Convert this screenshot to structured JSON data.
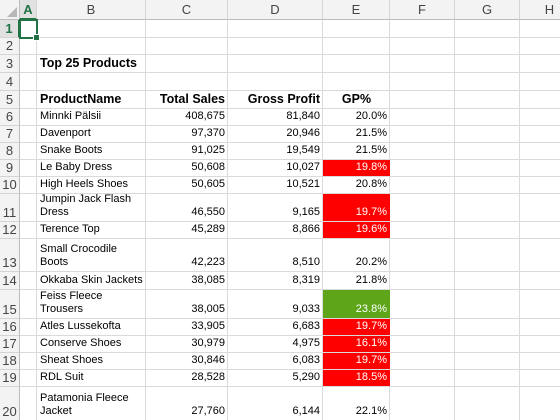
{
  "columns": [
    "A",
    "B",
    "C",
    "D",
    "E",
    "F",
    "G",
    "H"
  ],
  "row_numbers": [
    "1",
    "2",
    "3",
    "4",
    "5",
    "6",
    "7",
    "8",
    "9",
    "10",
    "11",
    "12",
    "13",
    "14",
    "15",
    "16",
    "17",
    "18",
    "19",
    "20"
  ],
  "title": "Top 25 Products",
  "headers": {
    "product": "ProductName",
    "sales": "Total Sales",
    "profit": "Gross Profit",
    "gp": "GP%"
  },
  "products": [
    {
      "name": "Minnki Pälsii",
      "sales": "408,675",
      "profit": "81,840",
      "gp": "20.0%",
      "fill": ""
    },
    {
      "name": "Davenport",
      "sales": "97,370",
      "profit": "20,946",
      "gp": "21.5%",
      "fill": ""
    },
    {
      "name": "Snake Boots",
      "sales": "91,025",
      "profit": "19,549",
      "gp": "21.5%",
      "fill": ""
    },
    {
      "name": "Le Baby Dress",
      "sales": "50,608",
      "profit": "10,027",
      "gp": "19.8%",
      "fill": "red"
    },
    {
      "name": "High Heels Shoes",
      "sales": "50,605",
      "profit": "10,521",
      "gp": "20.8%",
      "fill": ""
    },
    {
      "name": "Jumpin Jack Flash Dress",
      "sales": "46,550",
      "profit": "9,165",
      "gp": "19.7%",
      "fill": "red"
    },
    {
      "name": "Terence Top",
      "sales": "45,289",
      "profit": "8,866",
      "gp": "19.6%",
      "fill": "red"
    },
    {
      "name": "Small Crocodile Boots",
      "sales": "42,223",
      "profit": "8,510",
      "gp": "20.2%",
      "fill": ""
    },
    {
      "name": "Okkaba Skin Jackets",
      "sales": "38,085",
      "profit": "8,319",
      "gp": "21.8%",
      "fill": ""
    },
    {
      "name": "Feiss Fleece Trousers",
      "sales": "38,005",
      "profit": "9,033",
      "gp": "23.8%",
      "fill": "green"
    },
    {
      "name": "Atles Lussekofta",
      "sales": "33,905",
      "profit": "6,683",
      "gp": "19.7%",
      "fill": "red"
    },
    {
      "name": "Conserve Shoes",
      "sales": "30,979",
      "profit": "4,975",
      "gp": "16.1%",
      "fill": "red"
    },
    {
      "name": "Sheat Shoes",
      "sales": "30,846",
      "profit": "6,083",
      "gp": "19.7%",
      "fill": "red"
    },
    {
      "name": "RDL Suit",
      "sales": "28,528",
      "profit": "5,290",
      "gp": "18.5%",
      "fill": "red"
    },
    {
      "name": "Patamonia Fleece Jacket",
      "sales": "27,760",
      "profit": "6,144",
      "gp": "22.1%",
      "fill": ""
    }
  ],
  "selected_cell": "A1",
  "colors": {
    "red": "#ff0000",
    "green": "#5ea51a",
    "excel_green": "#217346"
  }
}
